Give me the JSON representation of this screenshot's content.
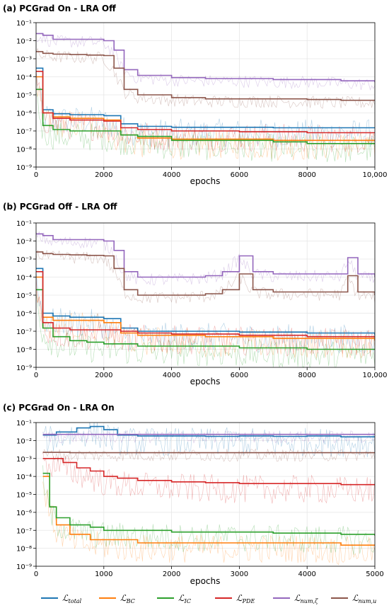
{
  "chart_data": [
    {
      "type": "line",
      "title": "(a) PCGrad On - LRA Off",
      "xlabel": "epochs",
      "ylabel": "",
      "yscale": "log",
      "xlim": [
        0,
        10000
      ],
      "ylim": [
        1e-09,
        0.1
      ],
      "xticks": [
        0,
        2000,
        4000,
        6000,
        8000,
        10000
      ],
      "xtick_labels": [
        "0",
        "2000",
        "4000",
        "6000",
        "8000",
        "10,000"
      ],
      "grid": true,
      "series": [
        {
          "name": "L_total",
          "x": [
            0,
            200,
            500,
            1000,
            1500,
            2000,
            2500,
            3000,
            4000,
            5000,
            6000,
            7000,
            8000,
            9000,
            10000
          ],
          "y": [
            0.0003,
            1.5e-06,
            9e-07,
            8e-07,
            8e-07,
            7e-07,
            2.5e-07,
            1.8e-07,
            1.6e-07,
            1.6e-07,
            1.6e-07,
            1.5e-07,
            1.5e-07,
            1.5e-07,
            1.5e-07
          ]
        },
        {
          "name": "L_BC",
          "x": [
            0,
            200,
            500,
            1000,
            1500,
            2000,
            2500,
            3000,
            4000,
            5000,
            6000,
            7000,
            8000,
            9000,
            10000
          ],
          "y": [
            0.0001,
            1e-06,
            6e-07,
            5e-07,
            5e-07,
            4e-07,
            6e-08,
            4e-08,
            3.5e-08,
            3.5e-08,
            3.5e-08,
            3e-08,
            3e-08,
            3e-08,
            3e-08
          ]
        },
        {
          "name": "L_IC",
          "x": [
            0,
            200,
            500,
            1000,
            1500,
            2000,
            2500,
            3000,
            4000,
            5000,
            6000,
            7000,
            8000,
            9000,
            10000
          ],
          "y": [
            2e-05,
            2e-07,
            1.2e-07,
            1e-07,
            1e-07,
            1e-07,
            6e-08,
            5e-08,
            3e-08,
            3e-08,
            3e-08,
            2.5e-08,
            2e-08,
            2e-08,
            2e-08
          ]
        },
        {
          "name": "L_PDE",
          "x": [
            0,
            200,
            500,
            1000,
            1500,
            2000,
            2500,
            3000,
            4000,
            5000,
            6000,
            7000,
            8000,
            9000,
            10000
          ],
          "y": [
            0.0002,
            1e-06,
            5e-07,
            4e-07,
            4e-07,
            3.5e-07,
            1.5e-07,
            1.2e-07,
            1e-07,
            1e-07,
            9e-08,
            9e-08,
            8e-08,
            8e-08,
            8e-08
          ]
        },
        {
          "name": "L_num_zeta",
          "x": [
            0,
            200,
            500,
            1000,
            1500,
            2000,
            2300,
            2600,
            3000,
            4000,
            5000,
            6000,
            7000,
            8000,
            9000,
            10000
          ],
          "y": [
            0.025,
            0.02,
            0.012,
            0.012,
            0.012,
            0.01,
            0.003,
            0.00025,
            0.00012,
            9e-05,
            8e-05,
            8e-05,
            7e-05,
            7e-05,
            6e-05,
            5e-05
          ]
        },
        {
          "name": "L_num_u",
          "x": [
            0,
            200,
            500,
            1000,
            1500,
            2000,
            2300,
            2600,
            3000,
            4000,
            5000,
            6000,
            7000,
            8000,
            9000,
            10000
          ],
          "y": [
            0.0025,
            0.002,
            0.0018,
            0.0017,
            0.0016,
            0.0015,
            0.0003,
            2e-05,
            1e-05,
            7e-06,
            6e-06,
            6e-06,
            6e-06,
            5.5e-06,
            5e-06,
            5e-06
          ]
        }
      ]
    },
    {
      "type": "line",
      "title": "(b) PCGrad Off - LRA Off",
      "xlabel": "epochs",
      "ylabel": "",
      "yscale": "log",
      "xlim": [
        0,
        10000
      ],
      "ylim": [
        1e-09,
        0.1
      ],
      "xticks": [
        0,
        2000,
        4000,
        6000,
        8000,
        10000
      ],
      "xtick_labels": [
        "0",
        "2000",
        "4000",
        "6000",
        "8000",
        "10,000"
      ],
      "grid": true,
      "series": [
        {
          "name": "L_total",
          "x": [
            0,
            200,
            500,
            1000,
            1500,
            2000,
            2500,
            3000,
            4000,
            5000,
            6000,
            7000,
            8000,
            9000,
            10000
          ],
          "y": [
            0.0003,
            1e-06,
            7e-07,
            6e-07,
            6e-07,
            5e-07,
            1.5e-07,
            1e-07,
            1e-07,
            1e-07,
            9e-08,
            9e-08,
            8e-08,
            8e-08,
            6e-08
          ]
        },
        {
          "name": "L_BC",
          "x": [
            0,
            200,
            500,
            1000,
            1500,
            2000,
            2500,
            3000,
            4000,
            5000,
            6000,
            7000,
            8000,
            9000,
            10000
          ],
          "y": [
            0.0001,
            6e-07,
            4e-07,
            4e-07,
            4e-07,
            3e-07,
            8e-08,
            6e-08,
            6e-08,
            5e-08,
            5e-08,
            4e-08,
            4e-08,
            4e-08,
            3e-08
          ]
        },
        {
          "name": "L_IC",
          "x": [
            0,
            200,
            500,
            1000,
            1500,
            2000,
            2500,
            3000,
            4000,
            5000,
            6000,
            7000,
            8000,
            9000,
            10000
          ],
          "y": [
            2e-05,
            1.5e-07,
            5e-08,
            3e-08,
            2.5e-08,
            2e-08,
            2e-08,
            1.5e-08,
            1.5e-08,
            1.5e-08,
            1.2e-08,
            1.2e-08,
            1e-08,
            1e-08,
            1e-08
          ]
        },
        {
          "name": "L_PDE",
          "x": [
            0,
            200,
            500,
            1000,
            1500,
            2000,
            2500,
            3000,
            4000,
            5000,
            6000,
            7000,
            8000,
            9000,
            10000
          ],
          "y": [
            0.0002,
            3e-07,
            1.5e-07,
            1.2e-07,
            1.2e-07,
            1.2e-07,
            1e-07,
            8e-08,
            7e-08,
            7e-08,
            6e-08,
            6e-08,
            5e-08,
            5e-08,
            5e-08
          ]
        },
        {
          "name": "L_num_zeta",
          "x": [
            0,
            200,
            500,
            1000,
            1500,
            2000,
            2300,
            2600,
            3000,
            4000,
            5000,
            5500,
            6000,
            6400,
            7000,
            8000,
            9000,
            9200,
            9500,
            10000
          ],
          "y": [
            0.025,
            0.02,
            0.012,
            0.012,
            0.012,
            0.01,
            0.003,
            0.0002,
            0.0001,
            0.0001,
            0.00012,
            0.0002,
            0.0015,
            0.0002,
            0.00015,
            0.00015,
            0.00015,
            0.0012,
            0.00015,
            0.0001
          ]
        },
        {
          "name": "L_num_u",
          "x": [
            0,
            200,
            500,
            1000,
            1500,
            2000,
            2300,
            2600,
            3000,
            4000,
            5000,
            5500,
            6000,
            6400,
            7000,
            8000,
            9000,
            9200,
            9500,
            10000
          ],
          "y": [
            0.0025,
            0.002,
            0.0018,
            0.0017,
            0.0016,
            0.0015,
            0.0003,
            2e-05,
            1e-05,
            1e-05,
            1.2e-05,
            2e-05,
            0.00015,
            2e-05,
            1.5e-05,
            1.5e-05,
            1.5e-05,
            0.00012,
            1.5e-05,
            1e-05
          ]
        }
      ]
    },
    {
      "type": "line",
      "title": "(c) PCGrad On - LRA On",
      "xlabel": "epochs",
      "ylabel": "",
      "yscale": "log",
      "xlim": [
        0,
        5000
      ],
      "ylim": [
        1e-09,
        0.1
      ],
      "xticks": [
        0,
        1000,
        2000,
        3000,
        4000,
        5000
      ],
      "xtick_labels": [
        "0",
        "1000",
        "2000",
        "3000",
        "4000",
        "5000"
      ],
      "grid": true,
      "series": [
        {
          "name": "L_total",
          "x": [
            100,
            300,
            600,
            800,
            1000,
            1200,
            1500,
            2000,
            2500,
            3000,
            3500,
            4000,
            4500,
            5000
          ],
          "y": [
            0.02,
            0.03,
            0.05,
            0.06,
            0.04,
            0.02,
            0.018,
            0.018,
            0.017,
            0.018,
            0.017,
            0.018,
            0.016,
            0.015
          ]
        },
        {
          "name": "L_BC",
          "x": [
            100,
            200,
            300,
            500,
            800,
            1000,
            1500,
            2000,
            2500,
            3000,
            3500,
            4000,
            4500,
            5000
          ],
          "y": [
            0.0001,
            2e-06,
            2e-07,
            6e-08,
            3e-08,
            3e-08,
            2e-08,
            2e-08,
            2e-08,
            2e-08,
            2e-08,
            2e-08,
            1.5e-08,
            1.5e-08
          ]
        },
        {
          "name": "L_IC",
          "x": [
            100,
            200,
            300,
            500,
            800,
            1000,
            1500,
            2000,
            2500,
            3000,
            3500,
            4000,
            4500,
            5000
          ],
          "y": [
            0.00015,
            2e-06,
            5e-07,
            2e-07,
            1.5e-07,
            1e-07,
            1e-07,
            8e-08,
            8e-08,
            8e-08,
            7e-08,
            7e-08,
            6e-08,
            5e-08
          ]
        },
        {
          "name": "L_PDE",
          "x": [
            100,
            200,
            400,
            600,
            800,
            1000,
            1200,
            1500,
            2000,
            2500,
            3000,
            3500,
            4000,
            4500,
            5000
          ],
          "y": [
            0.001,
            0.001,
            0.0006,
            0.0003,
            0.0002,
            0.0001,
            8e-05,
            6e-05,
            5e-05,
            4.5e-05,
            4e-05,
            4e-05,
            4e-05,
            3.5e-05,
            3.5e-05
          ]
        },
        {
          "name": "L_num_zeta",
          "x": [
            100,
            500,
            1000,
            2000,
            3000,
            4000,
            5000
          ],
          "y": [
            0.022,
            0.022,
            0.022,
            0.022,
            0.022,
            0.022,
            0.022
          ]
        },
        {
          "name": "L_num_u",
          "x": [
            100,
            500,
            1000,
            2000,
            3000,
            4000,
            5000
          ],
          "y": [
            0.0022,
            0.0021,
            0.0021,
            0.0021,
            0.0021,
            0.0021,
            0.0021
          ]
        }
      ]
    }
  ],
  "ytick_labels": [
    "10^-1",
    "10^-2",
    "10^-3",
    "10^-4",
    "10^-5",
    "10^-6",
    "10^-7",
    "10^-8",
    "10^-9"
  ],
  "legend": {
    "placement": "bottom",
    "entries": [
      {
        "base": "ℒ",
        "sub": "total",
        "color": "#1f77b4"
      },
      {
        "base": "ℒ",
        "sub": "BC",
        "color": "#ff7f0e"
      },
      {
        "base": "ℒ",
        "sub": "IC",
        "color": "#2ca02c"
      },
      {
        "base": "ℒ",
        "sub": "PDE",
        "color": "#d62728"
      },
      {
        "base": "ℒ",
        "sub": "num,ζ",
        "color": "#9467bd"
      },
      {
        "base": "ℒ",
        "sub": "num,u",
        "color": "#8c564b"
      }
    ]
  }
}
